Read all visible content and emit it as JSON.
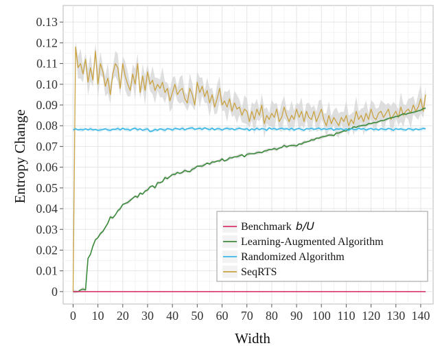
{
  "chart_data": {
    "type": "line",
    "xlabel": "Width",
    "ylabel": "Entropy Change",
    "xlim": [
      -4,
      145
    ],
    "ylim": [
      -0.006,
      0.138
    ],
    "xticks": [
      0,
      10,
      20,
      30,
      40,
      50,
      60,
      70,
      80,
      90,
      100,
      110,
      120,
      130,
      140
    ],
    "xtick_labels": [
      "0",
      "10",
      "20",
      "30",
      "40",
      "50",
      "60",
      "70",
      "80",
      "90",
      "100",
      "110",
      "120",
      "130",
      "140"
    ],
    "yticks": [
      0,
      0.01,
      0.02,
      0.03,
      0.04,
      0.05,
      0.06,
      0.07,
      0.08,
      0.09,
      0.1,
      0.11,
      0.12,
      0.13
    ],
    "ytick_labels": [
      "0",
      "0.01",
      "0.02",
      "0.03",
      "0.04",
      "0.05",
      "0.06",
      "0.07",
      "0.08",
      "0.09",
      "0.10",
      "0.11",
      "0.12",
      "0.13"
    ],
    "grid": true,
    "legend_position": "bottom-right",
    "x": [
      0,
      1,
      2,
      3,
      4,
      5,
      6,
      7,
      8,
      9,
      10,
      11,
      12,
      13,
      14,
      15,
      16,
      17,
      18,
      19,
      20,
      21,
      22,
      23,
      24,
      25,
      26,
      27,
      28,
      29,
      30,
      31,
      32,
      33,
      34,
      35,
      36,
      37,
      38,
      39,
      40,
      41,
      42,
      43,
      44,
      45,
      46,
      47,
      48,
      49,
      50,
      51,
      52,
      53,
      54,
      55,
      56,
      57,
      58,
      59,
      60,
      61,
      62,
      63,
      64,
      65,
      66,
      67,
      68,
      69,
      70,
      71,
      72,
      73,
      74,
      75,
      76,
      77,
      78,
      79,
      80,
      81,
      82,
      83,
      84,
      85,
      86,
      87,
      88,
      89,
      90,
      91,
      92,
      93,
      94,
      95,
      96,
      97,
      98,
      99,
      100,
      101,
      102,
      103,
      104,
      105,
      106,
      107,
      108,
      109,
      110,
      111,
      112,
      113,
      114,
      115,
      116,
      117,
      118,
      119,
      120,
      121,
      122,
      123,
      124,
      125,
      126,
      127,
      128,
      129,
      130,
      131,
      132,
      133,
      134,
      135,
      136,
      137,
      138,
      139,
      140,
      141,
      142
    ],
    "series": [
      {
        "name": "Benchmark",
        "name_suffix": "b/U",
        "color": "#d6336c",
        "values": [
          0,
          0,
          0,
          0,
          0,
          0,
          0,
          0,
          0,
          0,
          0,
          0,
          0,
          0,
          0,
          0,
          0,
          0,
          0,
          0,
          0,
          0,
          0,
          0,
          0,
          0,
          0,
          0,
          0,
          0,
          0,
          0,
          0,
          0,
          0,
          0,
          0,
          0,
          0,
          0,
          0,
          0,
          0,
          0,
          0,
          0,
          0,
          0,
          0,
          0,
          0,
          0,
          0,
          0,
          0,
          0,
          0,
          0,
          0,
          0,
          0,
          0,
          0,
          0,
          0,
          0,
          0,
          0,
          0,
          0,
          0,
          0,
          0,
          0,
          0,
          0,
          0,
          0,
          0,
          0,
          0,
          0,
          0,
          0,
          0,
          0,
          0,
          0,
          0,
          0,
          0,
          0,
          0,
          0,
          0,
          0,
          0,
          0,
          0,
          0,
          0,
          0,
          0,
          0,
          0,
          0,
          0,
          0,
          0,
          0,
          0,
          0,
          0,
          0,
          0,
          0,
          0,
          0,
          0,
          0,
          0,
          0,
          0,
          0,
          0,
          0,
          0,
          0,
          0,
          0,
          0,
          0,
          0,
          0,
          0,
          0,
          0,
          0,
          0,
          0,
          0,
          0,
          0
        ]
      },
      {
        "name": "Learning-Augmented Algorithm",
        "color": "#3a8a3a",
        "values": [
          0,
          0,
          0,
          0.0008,
          0.0012,
          0.0008,
          0.016,
          0.018,
          0.022,
          0.025,
          0.026,
          0.028,
          0.029,
          0.031,
          0.033,
          0.036,
          0.0355,
          0.037,
          0.039,
          0.04,
          0.042,
          0.0425,
          0.043,
          0.044,
          0.045,
          0.046,
          0.0455,
          0.0475,
          0.047,
          0.0485,
          0.049,
          0.0505,
          0.051,
          0.05,
          0.0525,
          0.0525,
          0.053,
          0.055,
          0.0545,
          0.0555,
          0.0565,
          0.0565,
          0.0575,
          0.057,
          0.0575,
          0.0585,
          0.058,
          0.0578,
          0.059,
          0.0595,
          0.0605,
          0.0605,
          0.0605,
          0.0612,
          0.062,
          0.0615,
          0.0625,
          0.0625,
          0.063,
          0.063,
          0.064,
          0.063,
          0.0635,
          0.0645,
          0.0645,
          0.065,
          0.065,
          0.0655,
          0.066,
          0.065,
          0.0662,
          0.0665,
          0.0665,
          0.0665,
          0.067,
          0.0672,
          0.067,
          0.0678,
          0.068,
          0.0685,
          0.0685,
          0.069,
          0.0685,
          0.0692,
          0.0695,
          0.0705,
          0.0698,
          0.0703,
          0.0705,
          0.0705,
          0.0702,
          0.0712,
          0.0712,
          0.072,
          0.0722,
          0.0725,
          0.0732,
          0.0732,
          0.074,
          0.074,
          0.0745,
          0.0748,
          0.075,
          0.0755,
          0.0755,
          0.0752,
          0.0765,
          0.0765,
          0.077,
          0.0775,
          0.0775,
          0.0785,
          0.0785,
          0.0795,
          0.0792,
          0.0798,
          0.08,
          0.0802,
          0.0802,
          0.081,
          0.081,
          0.0815,
          0.0815,
          0.082,
          0.0825,
          0.0825,
          0.083,
          0.0835,
          0.0838,
          0.084,
          0.0845,
          0.0845,
          0.0852,
          0.0858,
          0.0855,
          0.086,
          0.0862,
          0.0865,
          0.0868,
          0.0872,
          0.0875,
          0.0882,
          0.0885
        ]
      },
      {
        "name": "Randomized Algorithm",
        "color": "#35b6e6",
        "values": [
          0.078,
          0.0785,
          0.078,
          0.0782,
          0.078,
          0.0785,
          0.078,
          0.0785,
          0.078,
          0.0782,
          0.0778,
          0.078,
          0.0782,
          0.0785,
          0.078,
          0.0778,
          0.0783,
          0.0782,
          0.0787,
          0.078,
          0.0788,
          0.0782,
          0.0783,
          0.0778,
          0.0785,
          0.0788,
          0.078,
          0.0785,
          0.0778,
          0.0782,
          0.0785,
          0.0772,
          0.0775,
          0.0782,
          0.0778,
          0.0785,
          0.0782,
          0.0778,
          0.0786,
          0.0784,
          0.0779,
          0.0787,
          0.0785,
          0.0782,
          0.0788,
          0.078,
          0.0785,
          0.0788,
          0.079,
          0.0782,
          0.0785,
          0.0788,
          0.0782,
          0.079,
          0.0785,
          0.0781,
          0.0788,
          0.078,
          0.0786,
          0.0785,
          0.0779,
          0.0785,
          0.0788,
          0.0783,
          0.0786,
          0.078,
          0.0785,
          0.0788,
          0.0784,
          0.0782,
          0.0786,
          0.0777,
          0.0785,
          0.078,
          0.0788,
          0.0781,
          0.0786,
          0.0784,
          0.0778,
          0.079,
          0.0783,
          0.0787,
          0.0781,
          0.0785,
          0.0788,
          0.0783,
          0.0786,
          0.0781,
          0.0788,
          0.0779,
          0.0784,
          0.0787,
          0.0782,
          0.0778,
          0.0786,
          0.0784,
          0.0788,
          0.0782,
          0.0785,
          0.0789,
          0.0781,
          0.0786,
          0.0782,
          0.0785,
          0.0787,
          0.0778,
          0.0785,
          0.0783,
          0.0786,
          0.0779,
          0.0785,
          0.0778,
          0.0786,
          0.0782,
          0.0781,
          0.0788,
          0.0783,
          0.0786,
          0.0779,
          0.0784,
          0.0787,
          0.0781,
          0.0785,
          0.0779,
          0.0786,
          0.0783,
          0.0781,
          0.0787,
          0.0784,
          0.0778,
          0.0786,
          0.0782,
          0.0785,
          0.0781,
          0.0779,
          0.0786,
          0.0784,
          0.0779,
          0.0785,
          0.0781,
          0.0783,
          0.0787,
          0.0785
        ]
      },
      {
        "name": "SeqRTS",
        "color": "#c9a240",
        "values": [
          0,
          0.118,
          0.108,
          0.11,
          0.105,
          0.112,
          0.101,
          0.108,
          0.102,
          0.116,
          0.1,
          0.11,
          0.106,
          0.099,
          0.103,
          0.095,
          0.105,
          0.11,
          0.108,
          0.098,
          0.11,
          0.104,
          0.1,
          0.097,
          0.105,
          0.1,
          0.11,
          0.096,
          0.104,
          0.097,
          0.106,
          0.1,
          0.102,
          0.097,
          0.1,
          0.098,
          0.101,
          0.096,
          0.098,
          0.092,
          0.096,
          0.1,
          0.095,
          0.097,
          0.098,
          0.093,
          0.091,
          0.098,
          0.095,
          0.09,
          0.101,
          0.096,
          0.099,
          0.094,
          0.097,
          0.091,
          0.095,
          0.089,
          0.093,
          0.098,
          0.09,
          0.092,
          0.089,
          0.093,
          0.087,
          0.091,
          0.088,
          0.089,
          0.085,
          0.088,
          0.087,
          0.082,
          0.087,
          0.083,
          0.088,
          0.085,
          0.09,
          0.081,
          0.085,
          0.083,
          0.086,
          0.084,
          0.088,
          0.082,
          0.084,
          0.089,
          0.085,
          0.082,
          0.085,
          0.083,
          0.088,
          0.084,
          0.087,
          0.082,
          0.087,
          0.084,
          0.083,
          0.087,
          0.082,
          0.085,
          0.088,
          0.083,
          0.08,
          0.085,
          0.081,
          0.084,
          0.082,
          0.08,
          0.084,
          0.082,
          0.085,
          0.08,
          0.083,
          0.081,
          0.087,
          0.083,
          0.085,
          0.082,
          0.086,
          0.083,
          0.088,
          0.084,
          0.083,
          0.086,
          0.087,
          0.084,
          0.086,
          0.088,
          0.083,
          0.085,
          0.087,
          0.084,
          0.089,
          0.085,
          0.087,
          0.088,
          0.086,
          0.09,
          0.087,
          0.089,
          0.093,
          0.087,
          0.095
        ]
      }
    ]
  }
}
